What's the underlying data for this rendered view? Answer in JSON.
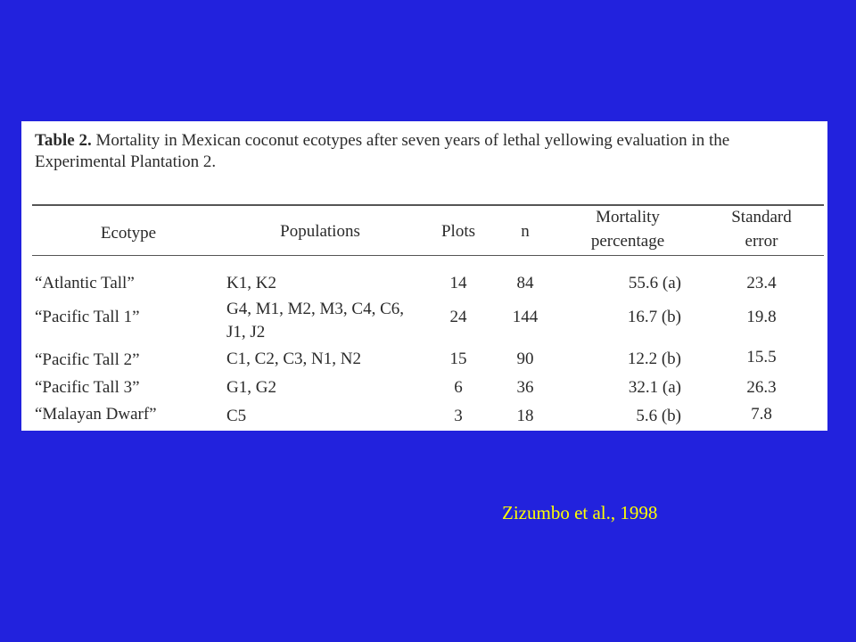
{
  "table": {
    "caption_label": "Table 2.",
    "caption_text": " Mortality in Mexican coconut ecotypes after seven years of lethal yellowing evaluation in the Experimental Plantation 2.",
    "headers": {
      "ecotype": "Ecotype",
      "populations": "Populations",
      "plots": "Plots",
      "n": "n",
      "mortality_line1": "Mortality",
      "mortality_line2": "percentage",
      "se_line1": "Standard",
      "se_line2": "error"
    },
    "rows": [
      {
        "ecotype": "“Atlantic Tall”",
        "populations": "K1, K2",
        "plots": "14",
        "n": "84",
        "mortality": "55.6 (a)",
        "se": "23.4"
      },
      {
        "ecotype": "“Pacific Tall 1”",
        "populations": "G4, M1, M2, M3, C4, C6, J1, J2",
        "plots": "24",
        "n": "144",
        "mortality": "16.7 (b)",
        "se": "19.8"
      },
      {
        "ecotype": "“Pacific Tall 2”",
        "populations": "C1, C2, C3, N1, N2",
        "plots": "15",
        "n": "90",
        "mortality": "12.2 (b)",
        "se": "15.5"
      },
      {
        "ecotype": "“Pacific Tall 3”",
        "populations": "G1, G2",
        "plots": "6",
        "n": "36",
        "mortality": "32.1 (a)",
        "se": "26.3"
      },
      {
        "ecotype": "“Malayan Dwarf”",
        "populations": "C5",
        "plots": "3",
        "n": "18",
        "mortality": "5.6 (b)",
        "se": "7.8"
      }
    ]
  },
  "credit": "Zizumbo et al., 1998",
  "colors": {
    "background": "#2222dd",
    "credit": "#ffff00"
  }
}
